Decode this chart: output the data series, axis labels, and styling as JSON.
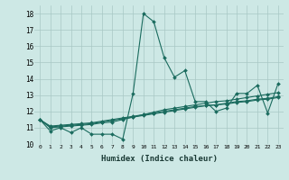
{
  "title": "",
  "xlabel": "Humidex (Indice chaleur)",
  "ylabel": "",
  "bg_color": "#cde8e5",
  "grid_color": "#a8c8c5",
  "line_color": "#1a6b5e",
  "xlim": [
    -0.5,
    23.5
  ],
  "ylim": [
    10,
    18.5
  ],
  "yticks": [
    10,
    11,
    12,
    13,
    14,
    15,
    16,
    17,
    18
  ],
  "xticks": [
    0,
    1,
    2,
    3,
    4,
    5,
    6,
    7,
    8,
    9,
    10,
    11,
    12,
    13,
    14,
    15,
    16,
    17,
    18,
    19,
    20,
    21,
    22,
    23
  ],
  "series": [
    [
      11.5,
      10.8,
      11.0,
      10.7,
      11.0,
      10.6,
      10.6,
      10.6,
      10.3,
      13.1,
      18.0,
      17.5,
      15.3,
      14.1,
      14.5,
      12.6,
      12.6,
      12.0,
      12.2,
      13.1,
      13.1,
      13.6,
      11.9,
      13.7
    ],
    [
      11.5,
      11.0,
      11.05,
      11.1,
      11.15,
      11.2,
      11.3,
      11.35,
      11.5,
      11.65,
      11.8,
      11.95,
      12.1,
      12.2,
      12.3,
      12.4,
      12.5,
      12.6,
      12.65,
      12.75,
      12.85,
      12.95,
      13.05,
      13.15
    ],
    [
      11.5,
      11.05,
      11.1,
      11.15,
      11.2,
      11.25,
      11.35,
      11.45,
      11.55,
      11.65,
      11.75,
      11.85,
      11.95,
      12.05,
      12.15,
      12.25,
      12.35,
      12.4,
      12.5,
      12.6,
      12.65,
      12.75,
      12.8,
      12.9
    ],
    [
      11.5,
      11.1,
      11.15,
      11.2,
      11.25,
      11.3,
      11.4,
      11.5,
      11.6,
      11.7,
      11.8,
      11.9,
      12.0,
      12.1,
      12.2,
      12.3,
      12.35,
      12.4,
      12.45,
      12.55,
      12.6,
      12.7,
      12.75,
      12.85
    ]
  ]
}
